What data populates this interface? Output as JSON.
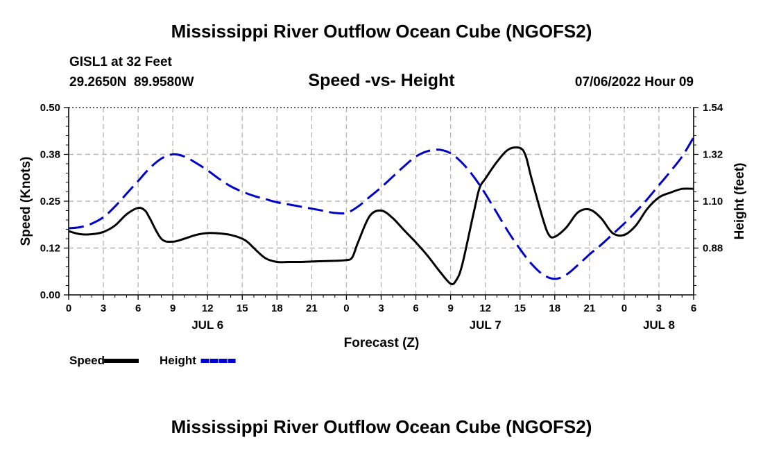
{
  "header": {
    "title": "Mississippi River Outflow Ocean Cube (NGOFS2)",
    "station": "GISL1 at 32 Feet",
    "coords": "29.2650N  89.9580W",
    "datetime": "07/06/2022 Hour 09",
    "footer_title": "Mississippi River Outflow Ocean Cube (NGOFS2)"
  },
  "chart_data": {
    "type": "line",
    "title": "Speed -vs- Height",
    "xlabel": "Forecast (Z)",
    "ylabel_left": "Speed (Knots)",
    "ylabel_right": "Height (feet)",
    "x_unit": "hours since JUL 6 00Z",
    "xlim": [
      0,
      54
    ],
    "ylim_left": [
      0,
      0.5
    ],
    "ylim_right": [
      0.66,
      1.54
    ],
    "grid": true,
    "x_ticks": [
      {
        "x": 0,
        "label": "0"
      },
      {
        "x": 3,
        "label": "3"
      },
      {
        "x": 6,
        "label": "6"
      },
      {
        "x": 9,
        "label": "9"
      },
      {
        "x": 12,
        "label": "12"
      },
      {
        "x": 15,
        "label": "15"
      },
      {
        "x": 18,
        "label": "18"
      },
      {
        "x": 21,
        "label": "21"
      },
      {
        "x": 24,
        "label": "0"
      },
      {
        "x": 27,
        "label": "3"
      },
      {
        "x": 30,
        "label": "6"
      },
      {
        "x": 33,
        "label": "9"
      },
      {
        "x": 36,
        "label": "12"
      },
      {
        "x": 39,
        "label": "15"
      },
      {
        "x": 42,
        "label": "18"
      },
      {
        "x": 45,
        "label": "21"
      },
      {
        "x": 48,
        "label": "0"
      },
      {
        "x": 51,
        "label": "3"
      },
      {
        "x": 54,
        "label": "6"
      }
    ],
    "day_labels": [
      {
        "x": 12,
        "label": "JUL 6"
      },
      {
        "x": 36,
        "label": "JUL 7"
      },
      {
        "x": 51,
        "label": "JUL 8"
      }
    ],
    "y_ticks_left": [
      {
        "value": 0.0,
        "label": "0.00"
      },
      {
        "value": 0.125,
        "label": "0.12"
      },
      {
        "value": 0.25,
        "label": "0.25"
      },
      {
        "value": 0.375,
        "label": "0.38"
      },
      {
        "value": 0.5,
        "label": "0.50"
      }
    ],
    "y_ticks_right": [
      {
        "value": 0.88,
        "label": "0.88"
      },
      {
        "value": 1.1,
        "label": "1.10"
      },
      {
        "value": 1.32,
        "label": "1.32"
      },
      {
        "value": 1.54,
        "label": "1.54"
      }
    ],
    "series": [
      {
        "name": "Speed",
        "axis": "left",
        "color": "#000000",
        "style": "solid",
        "x": [
          0,
          1,
          2,
          3,
          4,
          5,
          6,
          6.6,
          7,
          8,
          9,
          10,
          11,
          12,
          13,
          14,
          15,
          15.5,
          16,
          17,
          18,
          19,
          20,
          21,
          22,
          23,
          24,
          24.5,
          25,
          26,
          27,
          28,
          29,
          30,
          31,
          32,
          33,
          33.5,
          34,
          35,
          35.5,
          36,
          37,
          38,
          39,
          39.5,
          40,
          41,
          41.5,
          42,
          43,
          44,
          45,
          46,
          47,
          48,
          49,
          50,
          51,
          52,
          53,
          54
        ],
        "values": [
          0.17,
          0.162,
          0.162,
          0.168,
          0.185,
          0.215,
          0.232,
          0.225,
          0.205,
          0.15,
          0.142,
          0.15,
          0.16,
          0.165,
          0.164,
          0.16,
          0.15,
          0.14,
          0.125,
          0.098,
          0.088,
          0.088,
          0.088,
          0.089,
          0.09,
          0.091,
          0.093,
          0.1,
          0.14,
          0.21,
          0.225,
          0.205,
          0.172,
          0.14,
          0.105,
          0.065,
          0.03,
          0.04,
          0.08,
          0.22,
          0.285,
          0.31,
          0.355,
          0.388,
          0.392,
          0.37,
          0.31,
          0.2,
          0.16,
          0.155,
          0.18,
          0.22,
          0.228,
          0.205,
          0.165,
          0.16,
          0.185,
          0.23,
          0.26,
          0.273,
          0.283,
          0.283
        ]
      },
      {
        "name": "Height",
        "axis": "right",
        "color": "#0000cc",
        "style": "dashed",
        "x": [
          0,
          1,
          2,
          3,
          4,
          5,
          6,
          7,
          8,
          9,
          10,
          11,
          12,
          13,
          14,
          15,
          16,
          17,
          18,
          19,
          20,
          21,
          22,
          23,
          24,
          25,
          26,
          27,
          28,
          29,
          30,
          31,
          32,
          33,
          34,
          35,
          36,
          37,
          38,
          39,
          40,
          41,
          42,
          43,
          44,
          45,
          46,
          47,
          48,
          49,
          50,
          51,
          52,
          53,
          54
        ],
        "values": [
          0.973,
          0.978,
          0.995,
          1.025,
          1.075,
          1.135,
          1.195,
          1.255,
          1.3,
          1.32,
          1.31,
          1.28,
          1.245,
          1.205,
          1.17,
          1.145,
          1.125,
          1.11,
          1.095,
          1.085,
          1.075,
          1.065,
          1.055,
          1.045,
          1.045,
          1.075,
          1.12,
          1.165,
          1.215,
          1.265,
          1.31,
          1.335,
          1.342,
          1.325,
          1.28,
          1.215,
          1.135,
          1.045,
          0.955,
          0.875,
          0.805,
          0.755,
          0.735,
          0.755,
          0.8,
          0.85,
          0.895,
          0.945,
          0.995,
          1.05,
          1.11,
          1.175,
          1.24,
          1.31,
          1.4
        ]
      }
    ],
    "legend": [
      {
        "label": "Speed",
        "color": "#000000",
        "style": "solid"
      },
      {
        "label": "Height",
        "color": "#0000cc",
        "style": "dashed"
      }
    ],
    "legend_position": "bottom-left"
  }
}
